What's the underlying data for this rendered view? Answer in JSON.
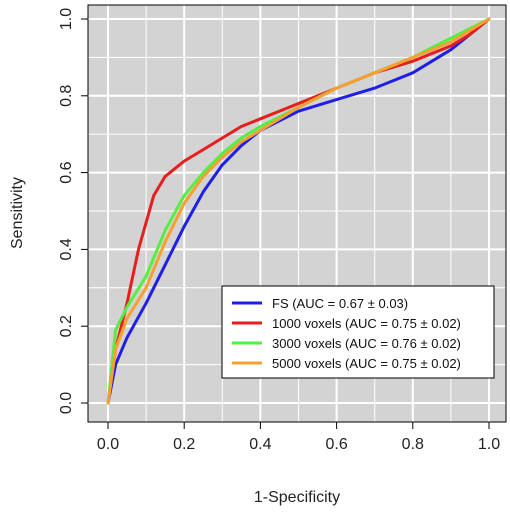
{
  "chart_data": {
    "type": "line",
    "title": "",
    "xlabel": "1-Specificity",
    "ylabel": "Sensitivity",
    "xlim": [
      0,
      1
    ],
    "ylim": [
      0,
      1
    ],
    "xticks": [
      "0.0",
      "0.2",
      "0.4",
      "0.6",
      "0.8",
      "1.0"
    ],
    "yticks": [
      "0.0",
      "0.2",
      "0.4",
      "0.6",
      "0.8",
      "1.0"
    ],
    "grid": true,
    "background_color": "#d3d3d3",
    "grid_color": "#ffffff",
    "legend_position": "bottom-right",
    "series": [
      {
        "name": "FS (AUC = 0.67 ± 0.03)",
        "color": "#1f1fe6",
        "x": [
          0,
          0.02,
          0.05,
          0.1,
          0.15,
          0.2,
          0.25,
          0.3,
          0.35,
          0.4,
          0.5,
          0.6,
          0.7,
          0.8,
          0.9,
          0.95,
          1.0
        ],
        "y": [
          0,
          0.1,
          0.17,
          0.26,
          0.36,
          0.46,
          0.55,
          0.62,
          0.67,
          0.71,
          0.76,
          0.79,
          0.82,
          0.86,
          0.92,
          0.96,
          1.0
        ]
      },
      {
        "name": "1000 voxels (AUC = 0.75 ± 0.02)",
        "color": "#e61e1e",
        "x": [
          0,
          0.02,
          0.05,
          0.08,
          0.1,
          0.12,
          0.15,
          0.2,
          0.25,
          0.3,
          0.35,
          0.4,
          0.5,
          0.6,
          0.7,
          0.8,
          0.9,
          0.95,
          1.0
        ],
        "y": [
          0,
          0.14,
          0.26,
          0.4,
          0.47,
          0.54,
          0.59,
          0.63,
          0.66,
          0.69,
          0.72,
          0.74,
          0.78,
          0.82,
          0.86,
          0.89,
          0.93,
          0.96,
          1.0
        ]
      },
      {
        "name": "3000 voxels (AUC = 0.76 ± 0.02)",
        "color": "#55ee44",
        "x": [
          0,
          0.02,
          0.05,
          0.1,
          0.15,
          0.2,
          0.25,
          0.3,
          0.35,
          0.4,
          0.5,
          0.6,
          0.7,
          0.8,
          0.9,
          1.0
        ],
        "y": [
          0,
          0.19,
          0.25,
          0.33,
          0.45,
          0.54,
          0.6,
          0.65,
          0.69,
          0.72,
          0.77,
          0.82,
          0.86,
          0.9,
          0.95,
          1.0
        ]
      },
      {
        "name": "5000 voxels (AUC = 0.75 ± 0.02)",
        "color": "#f5a030",
        "x": [
          0,
          0.02,
          0.05,
          0.1,
          0.15,
          0.2,
          0.25,
          0.3,
          0.35,
          0.4,
          0.5,
          0.6,
          0.7,
          0.8,
          0.9,
          1.0
        ],
        "y": [
          0,
          0.14,
          0.22,
          0.3,
          0.42,
          0.52,
          0.59,
          0.64,
          0.68,
          0.71,
          0.77,
          0.82,
          0.86,
          0.9,
          0.94,
          1.0
        ]
      }
    ]
  }
}
